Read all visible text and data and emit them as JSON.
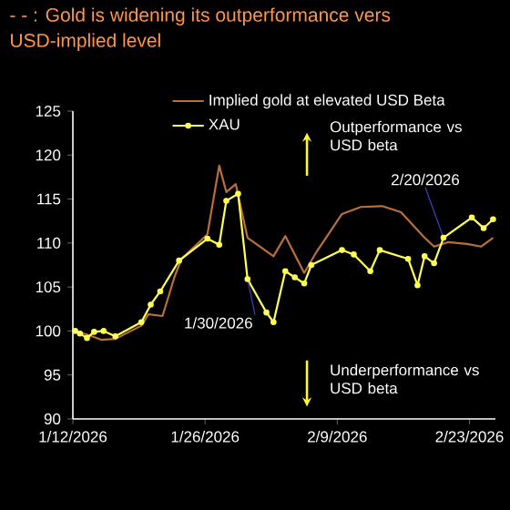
{
  "chart_data": {
    "type": "line",
    "title": "-          - : Gold is widening its outperformance vers",
    "subtitle": "USD-implied level",
    "xlim": [
      "2026-01-12",
      "2026-02-25T18:00"
    ],
    "xticks": [
      {
        "value": "2026-01-12",
        "label": "1/12/2026"
      },
      {
        "value": "2026-01-26",
        "label": "1/26/2026"
      },
      {
        "value": "2026-02-09",
        "label": "2/9/2026"
      },
      {
        "value": "2026-02-23",
        "label": "2/23/2026"
      }
    ],
    "ylim": [
      90,
      125
    ],
    "yticks": [
      90,
      95,
      100,
      105,
      110,
      115,
      120,
      125
    ],
    "grid": false,
    "legend": "top",
    "series": [
      {
        "name": "Implied gold at elevated USD Beta",
        "color": "#b8703a",
        "marker": "none",
        "x": [
          "2026-01-12",
          "2026-01-13T12:00",
          "2026-01-15",
          "2026-01-16T12:00",
          "2026-01-19T06:00",
          "2026-01-20T00:00",
          "2026-01-21T12:00",
          "2026-01-22T18:00",
          "2026-01-23T12:00",
          "2026-01-26T06:00",
          "2026-01-27T12:00",
          "2026-01-28T06:00",
          "2026-01-29T06:00",
          "2026-01-30T12:00",
          "2026-02-02T06:00",
          "2026-02-03T12:00",
          "2026-02-05T12:00",
          "2026-02-06T18:00",
          "2026-02-09T12:00",
          "2026-02-11T12:00",
          "2026-02-13T18:00",
          "2026-02-15T18:00",
          "2026-02-18T06:00",
          "2026-02-19T06:00",
          "2026-02-20T18:00",
          "2026-02-22T18:00",
          "2026-02-24T06:00",
          "2026-02-25T12:00"
        ],
        "values": [
          100,
          99.6,
          99.0,
          99.1,
          100.6,
          101.9,
          101.7,
          106.1,
          108.2,
          111,
          118.8,
          115.8,
          116.7,
          110.6,
          108.5,
          110.8,
          106.6,
          108.9,
          113.3,
          114.1,
          114.2,
          113.5,
          110.6,
          109.6,
          110.1,
          109.9,
          109.6,
          110.6
        ]
      },
      {
        "name": "XAU",
        "color": "#ffff55",
        "marker": "circle",
        "x": [
          "2026-01-12T06:00",
          "2026-01-12T18:00",
          "2026-01-13T12:00",
          "2026-01-14T06:00",
          "2026-01-15T06:00",
          "2026-01-16T12:00",
          "2026-01-19T06:00",
          "2026-01-20T06:00",
          "2026-01-21T06:00",
          "2026-01-23T06:00",
          "2026-01-26T06:00",
          "2026-01-27T12:00",
          "2026-01-28T06:00",
          "2026-01-29T12:00",
          "2026-01-30T12:00",
          "2026-02-01T12:00",
          "2026-02-02T06:00",
          "2026-02-03T12:00",
          "2026-02-04T12:00",
          "2026-02-05T12:00",
          "2026-02-06T06:00",
          "2026-02-09T12:00",
          "2026-02-10T18:00",
          "2026-02-12T12:00",
          "2026-02-13T12:00",
          "2026-02-16T12:00",
          "2026-02-17T12:00",
          "2026-02-18T06:00",
          "2026-02-19T06:00",
          "2026-02-20T06:00",
          "2026-02-23T06:00",
          "2026-02-24T12:00",
          "2026-02-25T12:00"
        ],
        "values": [
          100,
          99.7,
          99.2,
          99.9,
          100,
          99.4,
          101,
          103,
          104.5,
          108,
          110.5,
          109.8,
          114.8,
          115.6,
          105.9,
          102.1,
          101,
          106.8,
          106.1,
          105.4,
          107.5,
          109.2,
          108.7,
          106.8,
          109.2,
          108.2,
          105.2,
          108.5,
          107.7,
          110.6,
          112.9,
          111.7,
          112.7
        ]
      }
    ],
    "annotations": [
      "Outperformance vs USD beta",
      "Underperformance vs USD beta",
      {
        "text": "1/30/2026",
        "x": "2026-01-30T12:00",
        "y": 105.9
      },
      {
        "text": "2/20/2026",
        "x": "2026-02-20T06:00",
        "y": 110.6
      }
    ]
  }
}
